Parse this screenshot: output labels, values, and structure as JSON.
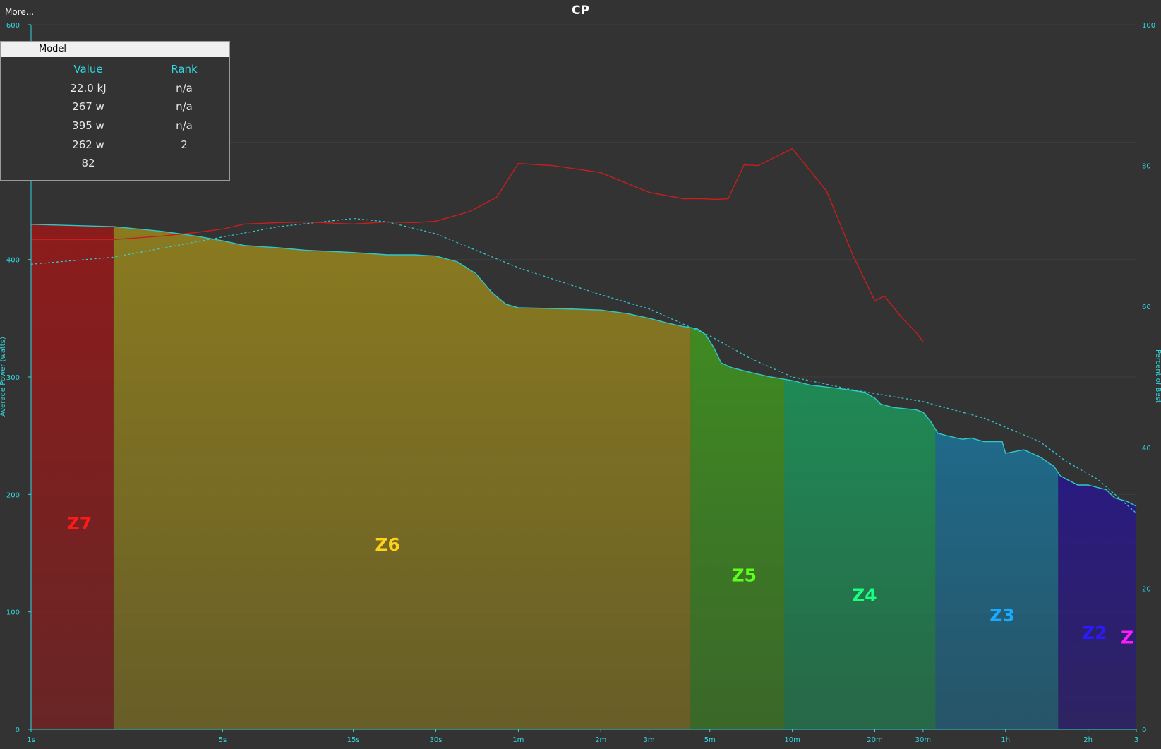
{
  "header": {
    "more_label": "More...",
    "title": "CP"
  },
  "model_panel": {
    "tab_label": "Model",
    "columns": [
      "Value",
      "Rank"
    ],
    "rows": [
      [
        "22.0 kJ",
        "n/a"
      ],
      [
        "267 w",
        "n/a"
      ],
      [
        "395 w",
        "n/a"
      ],
      [
        "262 w",
        "2"
      ],
      [
        "82",
        ""
      ]
    ]
  },
  "colors": {
    "background": "#333333",
    "grid": "#3e3e3e",
    "axis": "#33d6e0",
    "power_curve": "#2fc8c8",
    "model_curve": "#2fd0d8",
    "percent_curve": "#c81e1e"
  },
  "chart_data": {
    "type": "area",
    "title": "CP",
    "xlabel": "",
    "ylabel": "Average Power (watts)",
    "y2label": "Percent of Best",
    "x_scale": "log",
    "x_unit": "seconds",
    "xlim": [
      1,
      10800
    ],
    "ylim": [
      0,
      600
    ],
    "y2lim": [
      0,
      100
    ],
    "y_ticks": [
      0,
      100,
      200,
      300,
      400,
      600
    ],
    "y_tick_labels": [
      "0",
      "100",
      "200",
      "300",
      "400",
      "600"
    ],
    "y2_ticks": [
      0,
      20,
      40,
      60,
      80,
      100
    ],
    "y2_tick_labels": [
      "0",
      "20",
      "40",
      "60",
      "80",
      "100"
    ],
    "x_ticks": [
      1,
      5,
      15,
      30,
      60,
      120,
      180,
      300,
      600,
      1200,
      1800,
      3600,
      7200,
      10800
    ],
    "x_tick_labels": [
      "1s",
      "5s",
      "15s",
      "30s",
      "1m",
      "2m",
      "3m",
      "5m",
      "10m",
      "20m",
      "30m",
      "1h",
      "2h",
      "3"
    ],
    "grid": true,
    "zones": [
      {
        "name": "Z7",
        "start": 1,
        "end": 2,
        "color": "#8c1c1c",
        "label_color": "#ff1a1a",
        "label_x": 1.5,
        "label_y": 170
      },
      {
        "name": "Z6",
        "start": 2,
        "end": 255,
        "color": "#8a7a20",
        "label_color": "#ffd21a",
        "label_x": 20,
        "label_y": 152
      },
      {
        "name": "Z5",
        "start": 255,
        "end": 560,
        "color": "#3f8a22",
        "label_color": "#5cff1a",
        "label_x": 400,
        "label_y": 126
      },
      {
        "name": "Z4",
        "start": 560,
        "end": 2000,
        "color": "#1f8a55",
        "label_color": "#1aff80",
        "label_x": 1100,
        "label_y": 109
      },
      {
        "name": "Z3",
        "start": 2000,
        "end": 5600,
        "color": "#1f6a8a",
        "label_color": "#1aaaff",
        "label_x": 3500,
        "label_y": 92
      },
      {
        "name": "Z2",
        "start": 5600,
        "end": 10800,
        "color": "#2a1a80",
        "label_color": "#2a1aff",
        "label_x": 7600,
        "label_y": 77
      },
      {
        "name": "Z",
        "start": 10800,
        "end": 10800,
        "color": "#6a1a80",
        "label_color": "#ff1aff",
        "label_x": 10000,
        "label_y": 73
      }
    ],
    "series": [
      {
        "name": "",
        "axis": "left",
        "style": "area",
        "x": [
          1,
          2,
          3,
          4,
          5,
          6,
          8,
          10,
          15,
          20,
          25,
          30,
          36,
          42,
          48,
          54,
          60,
          90,
          120,
          150,
          180,
          210,
          240,
          270,
          290,
          310,
          330,
          360,
          420,
          500,
          600,
          700,
          900,
          1100,
          1200,
          1260,
          1400,
          1700,
          1800,
          1920,
          2040,
          2200,
          2500,
          2700,
          3000,
          3500,
          3600,
          4200,
          4800,
          5400,
          5700,
          6000,
          6600,
          7200,
          8400,
          9000,
          10000,
          10800
        ],
        "y": [
          430,
          428,
          424,
          420,
          416,
          412,
          410,
          408,
          406,
          404,
          404,
          403,
          398,
          388,
          372,
          362,
          359,
          358,
          357,
          354,
          350,
          346,
          343,
          341,
          336,
          325,
          312,
          308,
          304,
          300,
          297,
          293,
          290,
          287,
          282,
          277,
          274,
          272,
          270,
          262,
          252,
          250,
          247,
          248,
          245,
          245,
          235,
          238,
          232,
          224,
          216,
          213,
          208,
          208,
          204,
          197,
          194,
          190
        ]
      },
      {
        "name": "",
        "axis": "left",
        "style": "dashed",
        "x": [
          1,
          2,
          4,
          8,
          15,
          20,
          30,
          60,
          120,
          180,
          300,
          420,
          600,
          1000,
          1800,
          3000,
          4800,
          6000,
          7800,
          10800
        ],
        "y": [
          396,
          402,
          415,
          428,
          435,
          432,
          422,
          393,
          370,
          358,
          335,
          316,
          300,
          289,
          279,
          265,
          245,
          228,
          213,
          184
        ]
      },
      {
        "name": "",
        "axis": "right",
        "style": "line",
        "x": [
          1,
          2,
          3,
          4,
          5,
          6,
          8,
          10,
          15,
          20,
          25,
          30,
          40,
          50,
          60,
          80,
          120,
          180,
          240,
          280,
          320,
          350,
          400,
          450,
          600,
          800,
          1000,
          1200,
          1300,
          1500,
          1700,
          1800
        ],
        "y": [
          69.5,
          69.5,
          70,
          70.5,
          71,
          71.7,
          71.9,
          72,
          71.7,
          72,
          71.9,
          72.1,
          73.5,
          75.5,
          80.3,
          80,
          79,
          76.2,
          75.3,
          75.3,
          75.2,
          75.3,
          80.1,
          80,
          82.4,
          76.4,
          67.2,
          60.8,
          61.5,
          58.5,
          56.3,
          55
        ]
      }
    ]
  }
}
